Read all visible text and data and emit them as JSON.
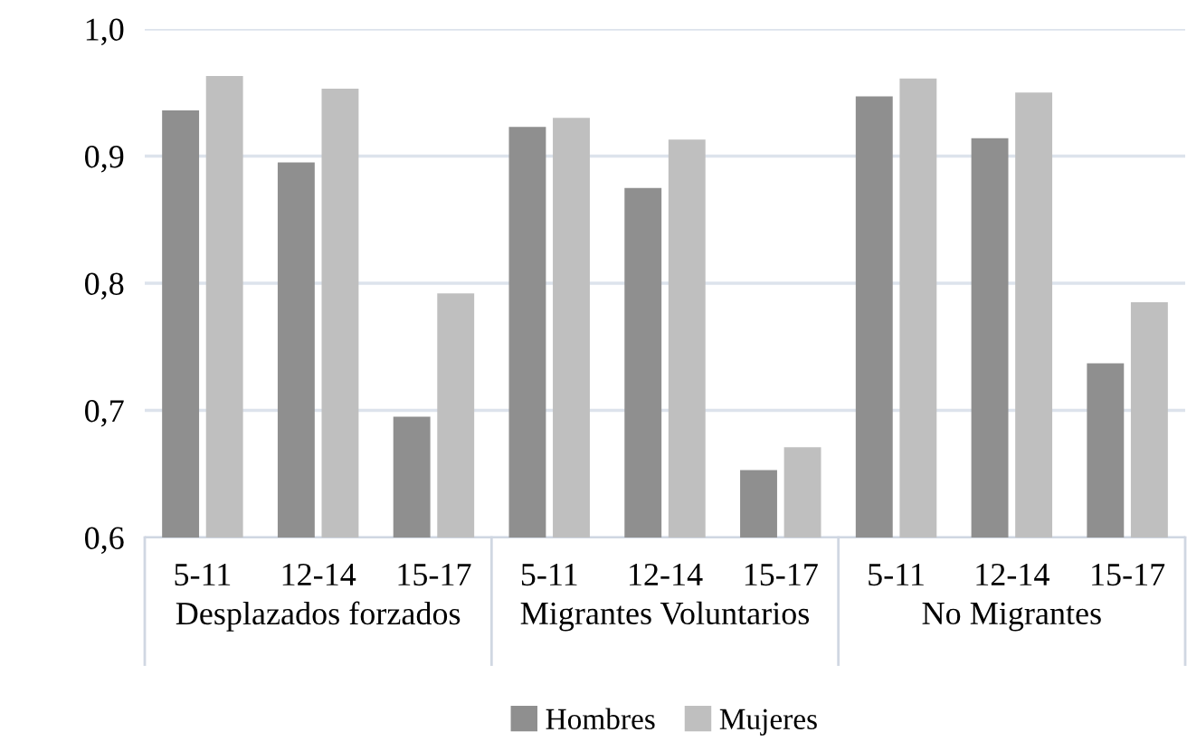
{
  "chart_data": {
    "type": "bar",
    "categories": [
      "5-11",
      "12-14",
      "15-17",
      "5-11",
      "12-14",
      "15-17",
      "5-11",
      "12-14",
      "15-17"
    ],
    "series": [
      {
        "name": "Hombres",
        "color": "#8f8f8f",
        "values": [
          0.936,
          0.895,
          0.695,
          0.923,
          0.875,
          0.653,
          0.947,
          0.914,
          0.737
        ]
      },
      {
        "name": "Mujeres",
        "color": "#bfbfbf",
        "values": [
          0.963,
          0.953,
          0.792,
          0.93,
          0.913,
          0.671,
          0.961,
          0.95,
          0.785
        ]
      }
    ],
    "annotations": [
      "Desplazados forzados",
      "Migrantes Voluntarios",
      "No Migrantes"
    ],
    "ylim": [
      0.6,
      1.0
    ],
    "yticks": [
      {
        "value": 0.6,
        "label": "0,6"
      },
      {
        "value": 0.7,
        "label": "0,7"
      },
      {
        "value": 0.8,
        "label": "0,8"
      },
      {
        "value": 0.9,
        "label": "0,9"
      },
      {
        "value": 1.0,
        "label": "1,0"
      }
    ],
    "grid": "y",
    "legend": "bottom"
  }
}
